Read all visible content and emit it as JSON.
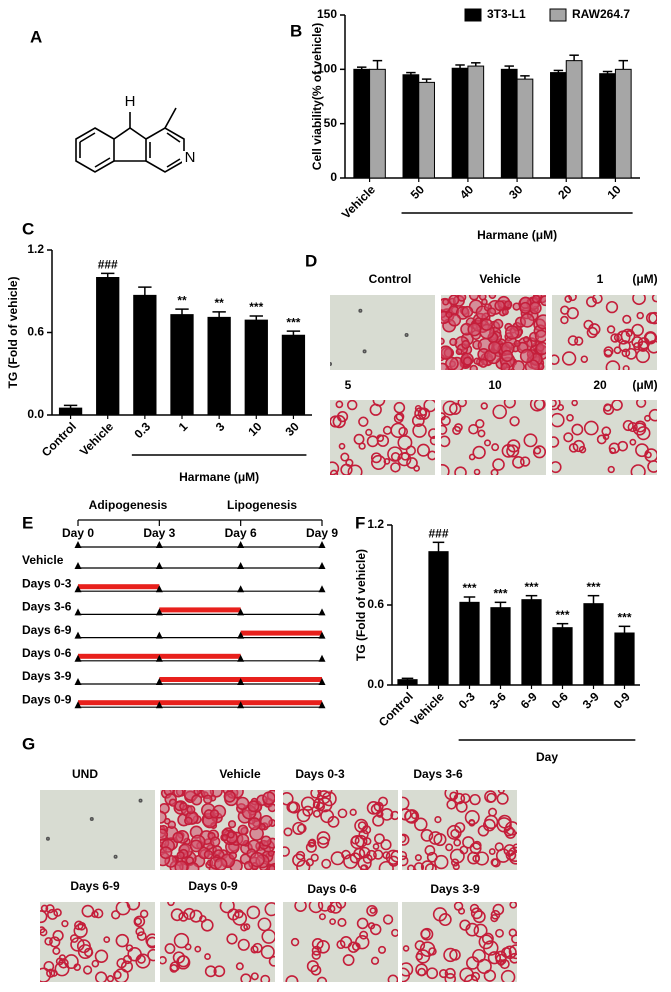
{
  "panel_labels": [
    "A",
    "B",
    "C",
    "D",
    "E",
    "F",
    "G"
  ],
  "structure": {
    "atoms": [
      "H",
      "N"
    ]
  },
  "chart_data": [
    {
      "type": "bar",
      "ylabel": "Cell viability(% of vehicle)",
      "categories": [
        "Vehicle",
        "50",
        "40",
        "30",
        "20",
        "10"
      ],
      "group_label": "Harmane (μM)",
      "series": [
        {
          "name": "3T3-L1",
          "color": "#000000",
          "values": [
            100,
            95,
            101,
            100,
            97,
            96
          ],
          "errors": [
            2,
            2,
            3,
            3,
            2,
            2
          ]
        },
        {
          "name": "RAW264.7",
          "color": "#a6a6a6",
          "values": [
            100,
            88,
            103,
            91,
            108,
            100
          ],
          "errors": [
            8,
            3,
            3,
            3,
            5,
            8
          ]
        }
      ],
      "ylim": [
        0,
        150
      ],
      "yticks": [
        0,
        50,
        100,
        150
      ],
      "legend": "top"
    },
    {
      "type": "bar",
      "ylabel": "TG (Fold of vehicle)",
      "categories": [
        "Control",
        "Vehicle",
        "0.3",
        "1",
        "3",
        "10",
        "30"
      ],
      "group_label": "Harmane (μM)",
      "values": [
        0.05,
        1.0,
        0.87,
        0.73,
        0.71,
        0.69,
        0.58
      ],
      "errors": [
        0.02,
        0.03,
        0.06,
        0.04,
        0.04,
        0.03,
        0.03
      ],
      "annotations": [
        null,
        "###",
        null,
        "**",
        "**",
        "***",
        "***"
      ],
      "color": "#000000",
      "ylim": [
        0,
        1.2
      ],
      "yticks": [
        {
          "value": 0,
          "label": "0.0"
        },
        0.6,
        1.2
      ]
    },
    {
      "type": "bar",
      "ylabel": "TG (Fold of vehicle)",
      "categories": [
        "Control",
        "Vehicle",
        "0-3",
        "3-6",
        "6-9",
        "0-6",
        "3-9",
        "0-9"
      ],
      "group_label": "Day",
      "values": [
        0.04,
        1.0,
        0.62,
        0.58,
        0.64,
        0.43,
        0.61,
        0.39
      ],
      "errors": [
        0.01,
        0.07,
        0.04,
        0.04,
        0.03,
        0.03,
        0.06,
        0.05
      ],
      "annotations": [
        null,
        "###",
        "***",
        "***",
        "***",
        "***",
        "***",
        "***"
      ],
      "color": "#000000",
      "ylim": [
        0,
        1.2
      ],
      "yticks": [
        {
          "value": 0,
          "label": "0.0"
        },
        0.6,
        1.2
      ]
    }
  ],
  "microscopy_d": {
    "labels": [
      "Control",
      "Vehicle",
      "1",
      "(μM)",
      "5",
      "10",
      "20",
      "(μM)"
    ]
  },
  "timeline": {
    "phases": [
      "Adipogenesis",
      "Lipogenesis"
    ],
    "days": [
      {
        "value": 0,
        "label": "Day 0"
      },
      {
        "value": 3,
        "label": "Day 3"
      },
      {
        "value": 6,
        "label": "Day 6"
      },
      {
        "value": 9,
        "label": "Day 9"
      }
    ],
    "rows": [
      {
        "label": "Vehicle",
        "start": null,
        "end": null
      },
      {
        "label": "Days 0-3",
        "start": 0,
        "end": 3
      },
      {
        "label": "Days 3-6",
        "start": 3,
        "end": 6
      },
      {
        "label": "Days 6-9",
        "start": 6,
        "end": 9
      },
      {
        "label": "Days 0-6",
        "start": 0,
        "end": 6
      },
      {
        "label": "Days 3-9",
        "start": 3,
        "end": 9
      },
      {
        "label": "Days 0-9",
        "start": 0,
        "end": 9
      }
    ]
  },
  "microscopy_g": {
    "labels": [
      "UND",
      "Vehicle",
      "Days 0-3",
      "Days 3-6",
      "Days 6-9",
      "Days 0-9",
      "Days 0-6",
      "Days 3-9"
    ]
  }
}
